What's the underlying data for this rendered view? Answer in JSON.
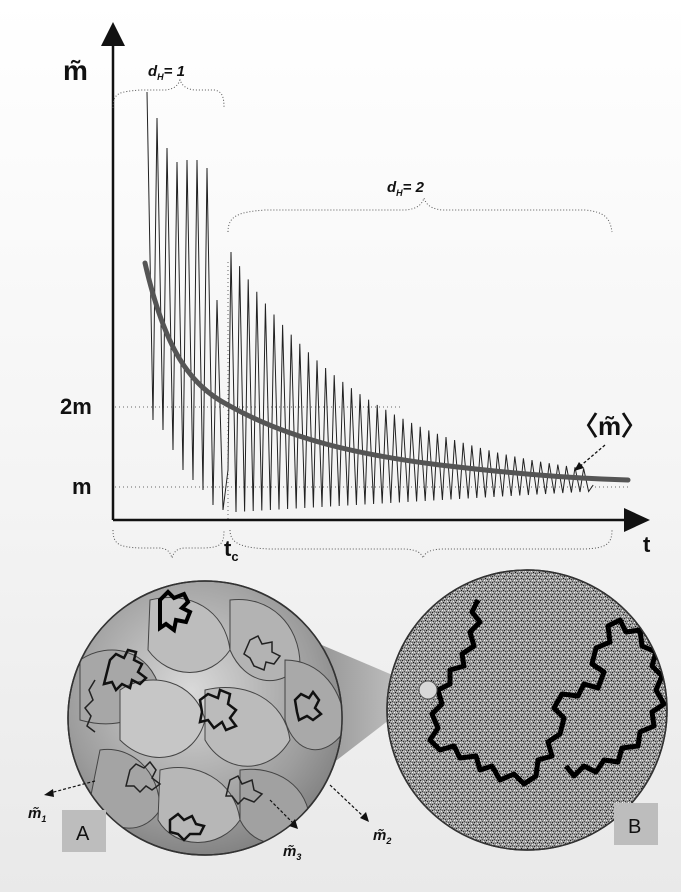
{
  "axes": {
    "y_label": "m̃",
    "x_label": "t",
    "y_tick_2m": "2m",
    "y_tick_m": "m",
    "x_tick_tc_main": "t",
    "x_tick_tc_sub": "c"
  },
  "regions": {
    "dh1_main": "d",
    "dh1_sub": "H",
    "dh1_eq": "= 1",
    "dh2_main": "d",
    "dh2_sub": "H",
    "dh2_eq": "= 2"
  },
  "mean_label": "〈m̃〉",
  "panels": {
    "a_label": "A",
    "b_label": "B",
    "m1_main": "m̃",
    "m1_sub": "1",
    "m2_main": "m̃",
    "m2_sub": "2",
    "m3_main": "m̃",
    "m3_sub": "3"
  },
  "colors": {
    "signal": "#222222",
    "mean_curve": "#555555",
    "axis": "#111111",
    "disc_fill": "#b8b8b8"
  }
}
